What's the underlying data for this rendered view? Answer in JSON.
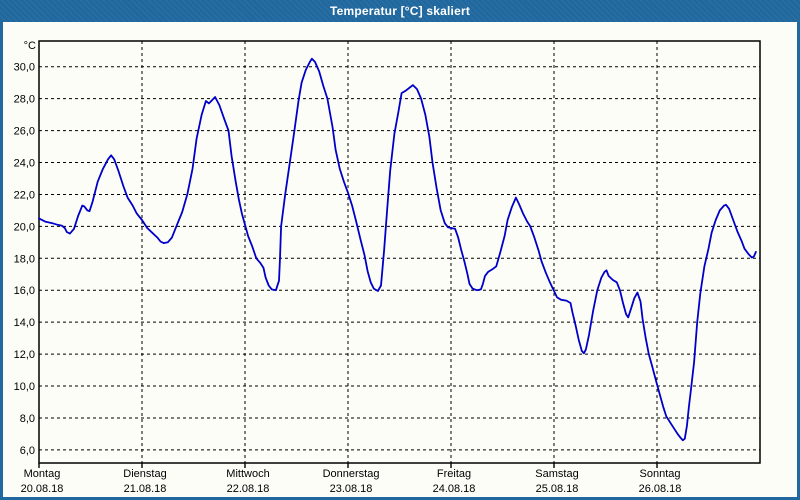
{
  "window": {
    "title": "Temperatur [°C] skaliert",
    "titlebar_color": "#20689e",
    "frame_color": "#20689e",
    "content_background": "#fdfdf8"
  },
  "chart_data": {
    "type": "line",
    "title": "Temperatur [°C] skaliert",
    "y_unit_label": "°C",
    "grid_style": "dashed",
    "grid_color": "#000000",
    "line_color": "#0000c8",
    "ylim": [
      5.18,
      31.61
    ],
    "y_ticks": [
      30,
      28,
      26,
      24,
      22,
      20,
      18,
      16,
      14,
      12,
      10,
      8,
      6
    ],
    "y_tick_labels": [
      "30,0",
      "28,0",
      "26,0",
      "24,0",
      "22,0",
      "20,0",
      "18,0",
      "16,0",
      "14,0",
      "12,0",
      "10,0",
      "8,0",
      "6,0"
    ],
    "xlim_days": [
      0,
      7
    ],
    "x_categories": [
      {
        "day": "Montag",
        "date": "20.08.18"
      },
      {
        "day": "Dienstag",
        "date": "21.08.18"
      },
      {
        "day": "Mittwoch",
        "date": "22.08.18"
      },
      {
        "day": "Donnerstag",
        "date": "23.08.18"
      },
      {
        "day": "Freitag",
        "date": "24.08.18"
      },
      {
        "day": "Samstag",
        "date": "25.08.18"
      },
      {
        "day": "Sonntag",
        "date": "26.08.18"
      }
    ],
    "series": [
      {
        "name": "Temperatur",
        "unit": "°C",
        "points": [
          [
            0.0,
            20.5
          ],
          [
            0.06,
            20.3
          ],
          [
            0.13,
            20.2
          ],
          [
            0.18,
            20.1
          ],
          [
            0.22,
            20.05
          ],
          [
            0.25,
            19.9
          ],
          [
            0.27,
            19.65
          ],
          [
            0.3,
            19.55
          ],
          [
            0.34,
            19.85
          ],
          [
            0.38,
            20.65
          ],
          [
            0.42,
            21.3
          ],
          [
            0.44,
            21.25
          ],
          [
            0.47,
            21.0
          ],
          [
            0.49,
            20.95
          ],
          [
            0.52,
            21.55
          ],
          [
            0.57,
            22.8
          ],
          [
            0.62,
            23.6
          ],
          [
            0.67,
            24.2
          ],
          [
            0.7,
            24.45
          ],
          [
            0.73,
            24.2
          ],
          [
            0.77,
            23.5
          ],
          [
            0.82,
            22.5
          ],
          [
            0.86,
            21.8
          ],
          [
            0.91,
            21.3
          ],
          [
            0.95,
            20.8
          ],
          [
            1.0,
            20.4
          ],
          [
            1.05,
            19.9
          ],
          [
            1.1,
            19.6
          ],
          [
            1.15,
            19.3
          ],
          [
            1.18,
            19.05
          ],
          [
            1.21,
            18.95
          ],
          [
            1.25,
            19.0
          ],
          [
            1.29,
            19.3
          ],
          [
            1.34,
            20.1
          ],
          [
            1.39,
            20.9
          ],
          [
            1.44,
            22.0
          ],
          [
            1.49,
            23.6
          ],
          [
            1.53,
            25.5
          ],
          [
            1.58,
            27.0
          ],
          [
            1.62,
            27.85
          ],
          [
            1.65,
            27.7
          ],
          [
            1.68,
            27.9
          ],
          [
            1.71,
            28.1
          ],
          [
            1.75,
            27.6
          ],
          [
            1.8,
            26.7
          ],
          [
            1.84,
            26.0
          ],
          [
            1.87,
            24.4
          ],
          [
            1.91,
            22.8
          ],
          [
            1.94,
            21.7
          ],
          [
            1.97,
            20.8
          ],
          [
            2.0,
            20.1
          ],
          [
            2.03,
            19.4
          ],
          [
            2.07,
            18.75
          ],
          [
            2.11,
            18.0
          ],
          [
            2.15,
            17.7
          ],
          [
            2.18,
            17.4
          ],
          [
            2.2,
            16.8
          ],
          [
            2.23,
            16.3
          ],
          [
            2.26,
            16.05
          ],
          [
            2.3,
            16.0
          ],
          [
            2.33,
            16.6
          ],
          [
            2.34,
            18.0
          ],
          [
            2.35,
            20.0
          ],
          [
            2.39,
            22.0
          ],
          [
            2.44,
            24.2
          ],
          [
            2.48,
            26.0
          ],
          [
            2.52,
            27.9
          ],
          [
            2.55,
            29.0
          ],
          [
            2.59,
            29.8
          ],
          [
            2.63,
            30.3
          ],
          [
            2.65,
            30.5
          ],
          [
            2.68,
            30.3
          ],
          [
            2.72,
            29.7
          ],
          [
            2.76,
            28.8
          ],
          [
            2.8,
            28.0
          ],
          [
            2.85,
            26.2
          ],
          [
            2.88,
            24.8
          ],
          [
            2.92,
            23.6
          ],
          [
            2.96,
            22.8
          ],
          [
            3.0,
            22.1
          ],
          [
            3.04,
            21.3
          ],
          [
            3.08,
            20.3
          ],
          [
            3.12,
            19.2
          ],
          [
            3.16,
            18.2
          ],
          [
            3.19,
            17.2
          ],
          [
            3.22,
            16.5
          ],
          [
            3.25,
            16.1
          ],
          [
            3.29,
            15.95
          ],
          [
            3.32,
            16.3
          ],
          [
            3.35,
            18.5
          ],
          [
            3.38,
            21.0
          ],
          [
            3.41,
            23.5
          ],
          [
            3.45,
            25.8
          ],
          [
            3.49,
            27.2
          ],
          [
            3.52,
            28.35
          ],
          [
            3.56,
            28.5
          ],
          [
            3.6,
            28.7
          ],
          [
            3.63,
            28.85
          ],
          [
            3.67,
            28.6
          ],
          [
            3.71,
            28.0
          ],
          [
            3.75,
            27.0
          ],
          [
            3.79,
            25.6
          ],
          [
            3.82,
            24.0
          ],
          [
            3.86,
            22.4
          ],
          [
            3.9,
            21.0
          ],
          [
            3.94,
            20.2
          ],
          [
            3.97,
            19.95
          ],
          [
            4.0,
            19.9
          ],
          [
            4.04,
            19.85
          ],
          [
            4.07,
            19.3
          ],
          [
            4.1,
            18.5
          ],
          [
            4.13,
            17.8
          ],
          [
            4.16,
            17.0
          ],
          [
            4.18,
            16.4
          ],
          [
            4.21,
            16.1
          ],
          [
            4.25,
            16.0
          ],
          [
            4.29,
            16.05
          ],
          [
            4.31,
            16.4
          ],
          [
            4.33,
            16.9
          ],
          [
            4.36,
            17.15
          ],
          [
            4.41,
            17.35
          ],
          [
            4.44,
            17.5
          ],
          [
            4.48,
            18.4
          ],
          [
            4.52,
            19.4
          ],
          [
            4.55,
            20.4
          ],
          [
            4.59,
            21.2
          ],
          [
            4.63,
            21.8
          ],
          [
            4.66,
            21.4
          ],
          [
            4.7,
            20.8
          ],
          [
            4.74,
            20.3
          ],
          [
            4.77,
            20.0
          ],
          [
            4.81,
            19.3
          ],
          [
            4.85,
            18.5
          ],
          [
            4.88,
            17.8
          ],
          [
            4.92,
            17.1
          ],
          [
            4.96,
            16.5
          ],
          [
            5.0,
            15.95
          ],
          [
            5.03,
            15.55
          ],
          [
            5.07,
            15.4
          ],
          [
            5.12,
            15.35
          ],
          [
            5.16,
            15.2
          ],
          [
            5.18,
            14.6
          ],
          [
            5.21,
            13.8
          ],
          [
            5.24,
            12.9
          ],
          [
            5.27,
            12.2
          ],
          [
            5.29,
            12.05
          ],
          [
            5.31,
            12.3
          ],
          [
            5.34,
            13.2
          ],
          [
            5.38,
            14.7
          ],
          [
            5.42,
            16.0
          ],
          [
            5.46,
            16.8
          ],
          [
            5.49,
            17.15
          ],
          [
            5.51,
            17.25
          ],
          [
            5.53,
            16.9
          ],
          [
            5.57,
            16.65
          ],
          [
            5.61,
            16.5
          ],
          [
            5.64,
            16.0
          ],
          [
            5.67,
            15.2
          ],
          [
            5.7,
            14.5
          ],
          [
            5.72,
            14.3
          ],
          [
            5.75,
            14.9
          ],
          [
            5.78,
            15.5
          ],
          [
            5.81,
            15.85
          ],
          [
            5.84,
            15.3
          ],
          [
            5.86,
            14.2
          ],
          [
            5.89,
            13.0
          ],
          [
            5.92,
            12.0
          ],
          [
            5.95,
            11.3
          ],
          [
            6.0,
            10.1
          ],
          [
            6.03,
            9.4
          ],
          [
            6.06,
            8.7
          ],
          [
            6.09,
            8.1
          ],
          [
            6.13,
            7.7
          ],
          [
            6.17,
            7.3
          ],
          [
            6.2,
            7.0
          ],
          [
            6.23,
            6.75
          ],
          [
            6.25,
            6.6
          ],
          [
            6.27,
            6.7
          ],
          [
            6.29,
            7.5
          ],
          [
            6.31,
            8.7
          ],
          [
            6.33,
            9.8
          ],
          [
            6.36,
            11.5
          ],
          [
            6.39,
            14.0
          ],
          [
            6.42,
            15.8
          ],
          [
            6.46,
            17.5
          ],
          [
            6.5,
            18.6
          ],
          [
            6.53,
            19.6
          ],
          [
            6.57,
            20.4
          ],
          [
            6.61,
            21.0
          ],
          [
            6.65,
            21.3
          ],
          [
            6.67,
            21.35
          ],
          [
            6.7,
            21.1
          ],
          [
            6.74,
            20.4
          ],
          [
            6.78,
            19.7
          ],
          [
            6.82,
            19.1
          ],
          [
            6.85,
            18.6
          ],
          [
            6.89,
            18.25
          ],
          [
            6.92,
            18.05
          ],
          [
            6.94,
            18.1
          ],
          [
            6.96,
            18.4
          ]
        ]
      }
    ]
  }
}
